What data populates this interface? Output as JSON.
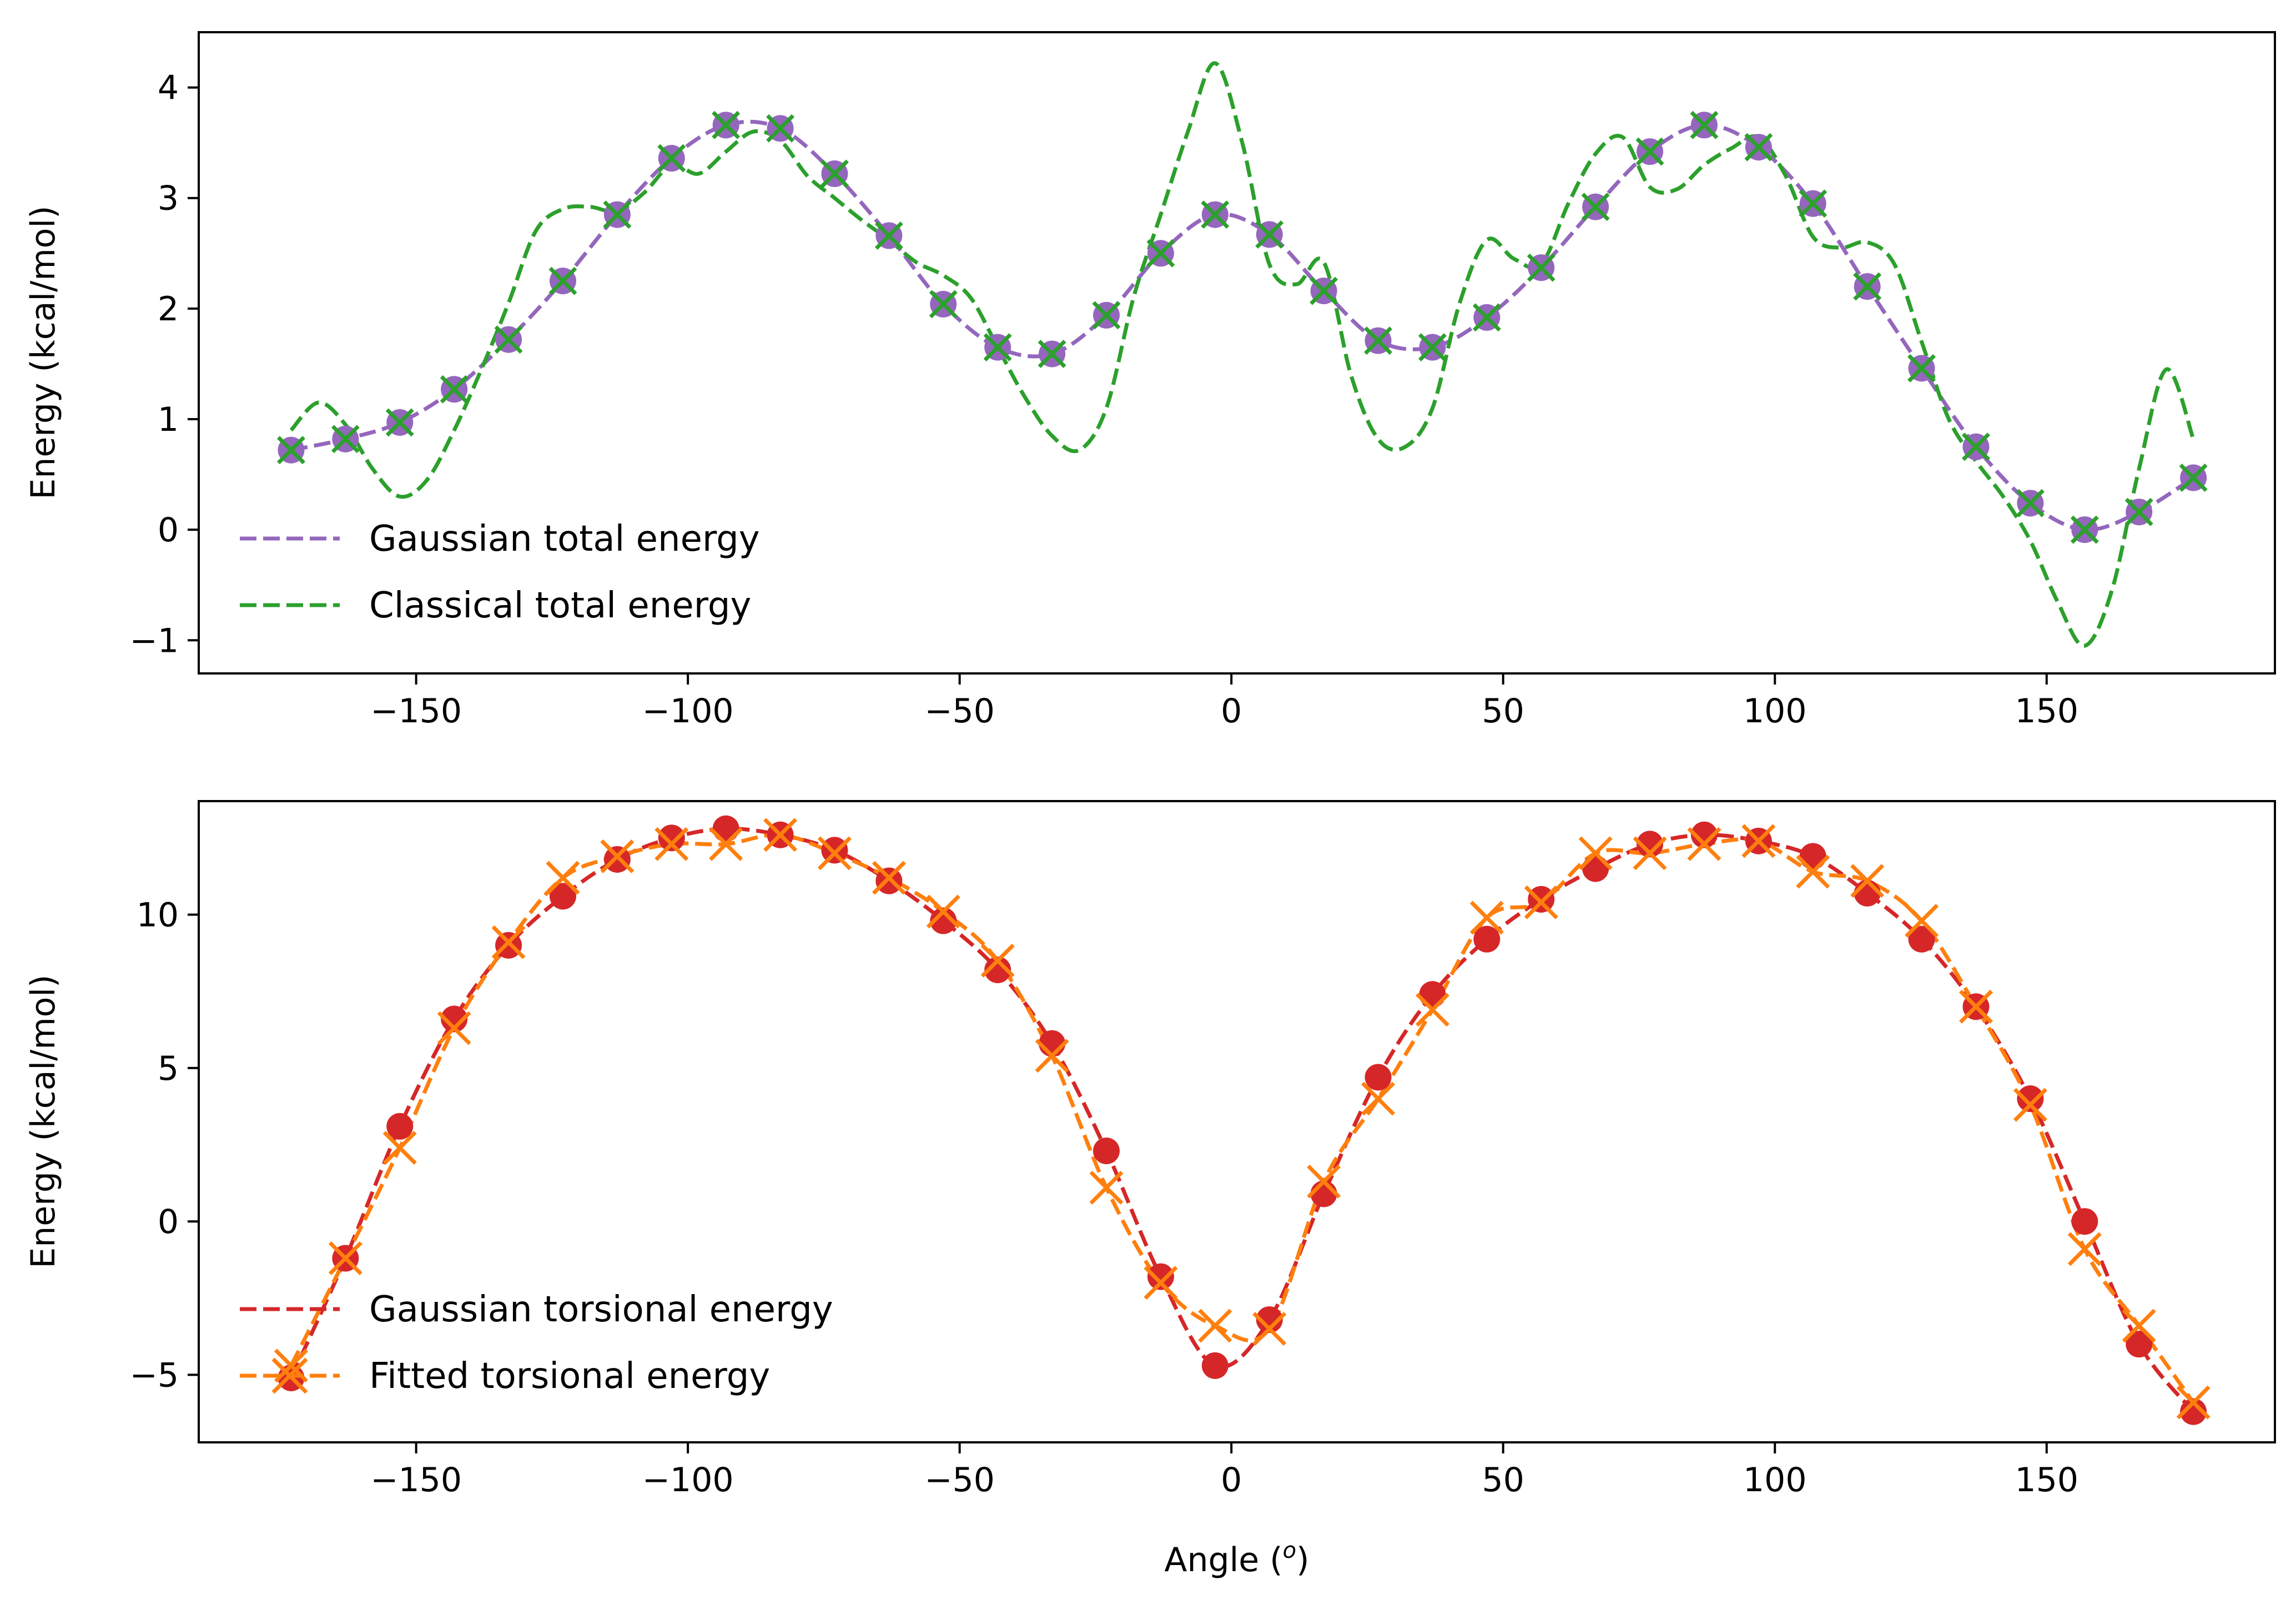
{
  "chart_data": [
    {
      "type": "line",
      "xlabel": "",
      "ylabel": "Energy (kcal/mol)",
      "xlim": [
        -190,
        192
      ],
      "ylim": [
        -1.3,
        4.5
      ],
      "xticks": [
        -150,
        -100,
        -50,
        0,
        50,
        100,
        150
      ],
      "xtick_labels": [
        "−150",
        "−100",
        "−50",
        "0",
        "50",
        "100",
        "150"
      ],
      "yticks": [
        -1,
        0,
        1,
        2,
        3,
        4
      ],
      "ytick_labels": [
        "−1",
        "0",
        "1",
        "2",
        "3",
        "4"
      ],
      "grid": false,
      "legend_position": "lower-left",
      "x": [
        -173,
        -163,
        -153,
        -143,
        -133,
        -123,
        -113,
        -103,
        -93,
        -83,
        -73,
        -63,
        -53,
        -43,
        -33,
        -23,
        -13,
        -3,
        7,
        17,
        27,
        37,
        47,
        57,
        67,
        77,
        87,
        97,
        107,
        117,
        127,
        137,
        147,
        157,
        167,
        177
      ],
      "series": [
        {
          "name": "Gaussian total energy",
          "color": "#9467bd",
          "line_style": "dashed",
          "marker": "circle",
          "values": [
            0.72,
            0.82,
            0.97,
            1.27,
            1.72,
            2.25,
            2.85,
            3.36,
            3.66,
            3.63,
            3.22,
            2.66,
            2.04,
            1.65,
            1.59,
            1.94,
            2.5,
            2.85,
            2.67,
            2.16,
            1.71,
            1.65,
            1.92,
            2.37,
            2.92,
            3.42,
            3.66,
            3.46,
            2.95,
            2.2,
            1.46,
            0.75,
            0.24,
            0.0,
            0.16,
            0.47
          ]
        },
        {
          "name": "Classical total energy",
          "color": "#2ca02c",
          "line_style": "dashed",
          "marker": "x",
          "values": [
            0.72,
            0.82,
            0.97,
            1.27,
            1.72,
            2.25,
            2.85,
            3.36,
            3.66,
            3.63,
            3.22,
            2.66,
            2.04,
            1.65,
            1.59,
            1.94,
            2.5,
            2.85,
            2.67,
            2.16,
            1.71,
            1.65,
            1.92,
            2.37,
            2.92,
            3.42,
            3.66,
            3.46,
            2.95,
            2.2,
            1.46,
            0.75,
            0.24,
            0.0,
            0.16,
            0.47
          ],
          "curve_x": [
            -173,
            -168,
            -163,
            -158,
            -153,
            -148,
            -143,
            -138,
            -133,
            -128,
            -123,
            -118,
            -113,
            -108,
            -103,
            -98,
            -93,
            -88,
            -83,
            -78,
            -73,
            -68,
            -63,
            -58,
            -53,
            -48,
            -43,
            -38,
            -33,
            -28,
            -23,
            -18,
            -13,
            -8,
            -3,
            2,
            7,
            12,
            17,
            22,
            27,
            32,
            37,
            42,
            47,
            52,
            57,
            62,
            67,
            72,
            77,
            82,
            87,
            92,
            97,
            102,
            107,
            112,
            117,
            122,
            127,
            132,
            137,
            142,
            147,
            152,
            157,
            162,
            167,
            172,
            177
          ],
          "curve_values": [
            0.9,
            1.15,
            0.95,
            0.55,
            0.3,
            0.45,
            0.9,
            1.45,
            2.05,
            2.7,
            2.9,
            2.92,
            2.88,
            3.05,
            3.3,
            3.22,
            3.42,
            3.6,
            3.52,
            3.2,
            3.0,
            2.8,
            2.62,
            2.42,
            2.3,
            2.1,
            1.65,
            1.2,
            0.85,
            0.72,
            1.1,
            2.1,
            2.85,
            3.6,
            4.22,
            3.5,
            2.4,
            2.22,
            2.42,
            1.4,
            0.82,
            0.75,
            1.1,
            2.05,
            2.62,
            2.45,
            2.4,
            2.95,
            3.4,
            3.55,
            3.1,
            3.08,
            3.3,
            3.45,
            3.55,
            3.2,
            2.65,
            2.55,
            2.6,
            2.4,
            1.7,
            1.0,
            0.62,
            0.3,
            -0.1,
            -0.65,
            -1.05,
            -0.55,
            0.55,
            1.45,
            0.82
          ]
        }
      ]
    },
    {
      "type": "line",
      "xlabel": "Angle (",
      "xlabel_sup": "o",
      "xlabel_end": ")",
      "ylabel": "Energy (kcal/mol)",
      "xlim": [
        -190,
        192
      ],
      "ylim": [
        -7.2,
        13.7
      ],
      "xticks": [
        -150,
        -100,
        -50,
        0,
        50,
        100,
        150
      ],
      "xtick_labels": [
        "−150",
        "−100",
        "−50",
        "0",
        "50",
        "100",
        "150"
      ],
      "yticks": [
        -5,
        0,
        5,
        10
      ],
      "ytick_labels": [
        "−5",
        "0",
        "5",
        "10"
      ],
      "grid": false,
      "legend_position": "lower-left",
      "x": [
        -173,
        -163,
        -153,
        -143,
        -133,
        -123,
        -113,
        -103,
        -93,
        -83,
        -73,
        -63,
        -53,
        -43,
        -33,
        -23,
        -13,
        -3,
        7,
        17,
        27,
        37,
        47,
        57,
        67,
        77,
        87,
        97,
        107,
        117,
        127,
        137,
        147,
        157,
        167,
        177
      ],
      "series": [
        {
          "name": "Gaussian torsional energy",
          "color": "#d62728",
          "line_style": "dashed",
          "marker": "circle",
          "values": [
            -5.1,
            -1.2,
            3.1,
            6.6,
            9.0,
            10.6,
            11.8,
            12.5,
            12.8,
            12.6,
            12.1,
            11.1,
            9.8,
            8.2,
            5.8,
            2.3,
            -1.8,
            -4.7,
            -3.2,
            0.9,
            4.7,
            7.4,
            9.2,
            10.5,
            11.5,
            12.3,
            12.6,
            12.4,
            11.9,
            10.7,
            9.2,
            7.0,
            4.0,
            0.0,
            -4.0,
            -6.2
          ]
        },
        {
          "name": "Fitted torsional energy",
          "color": "#ff7f0e",
          "line_style": "dashed",
          "marker": "x",
          "values": [
            -4.7,
            -1.2,
            2.4,
            6.3,
            9.1,
            11.2,
            11.9,
            12.3,
            12.3,
            12.6,
            12.0,
            11.2,
            10.1,
            8.5,
            5.4,
            1.1,
            -2.0,
            -3.4,
            -3.5,
            1.3,
            4.0,
            6.9,
            9.9,
            10.4,
            12.0,
            12.0,
            12.3,
            12.4,
            11.4,
            11.1,
            9.8,
            7.0,
            3.8,
            -0.9,
            -3.4,
            -5.9
          ]
        }
      ]
    }
  ]
}
